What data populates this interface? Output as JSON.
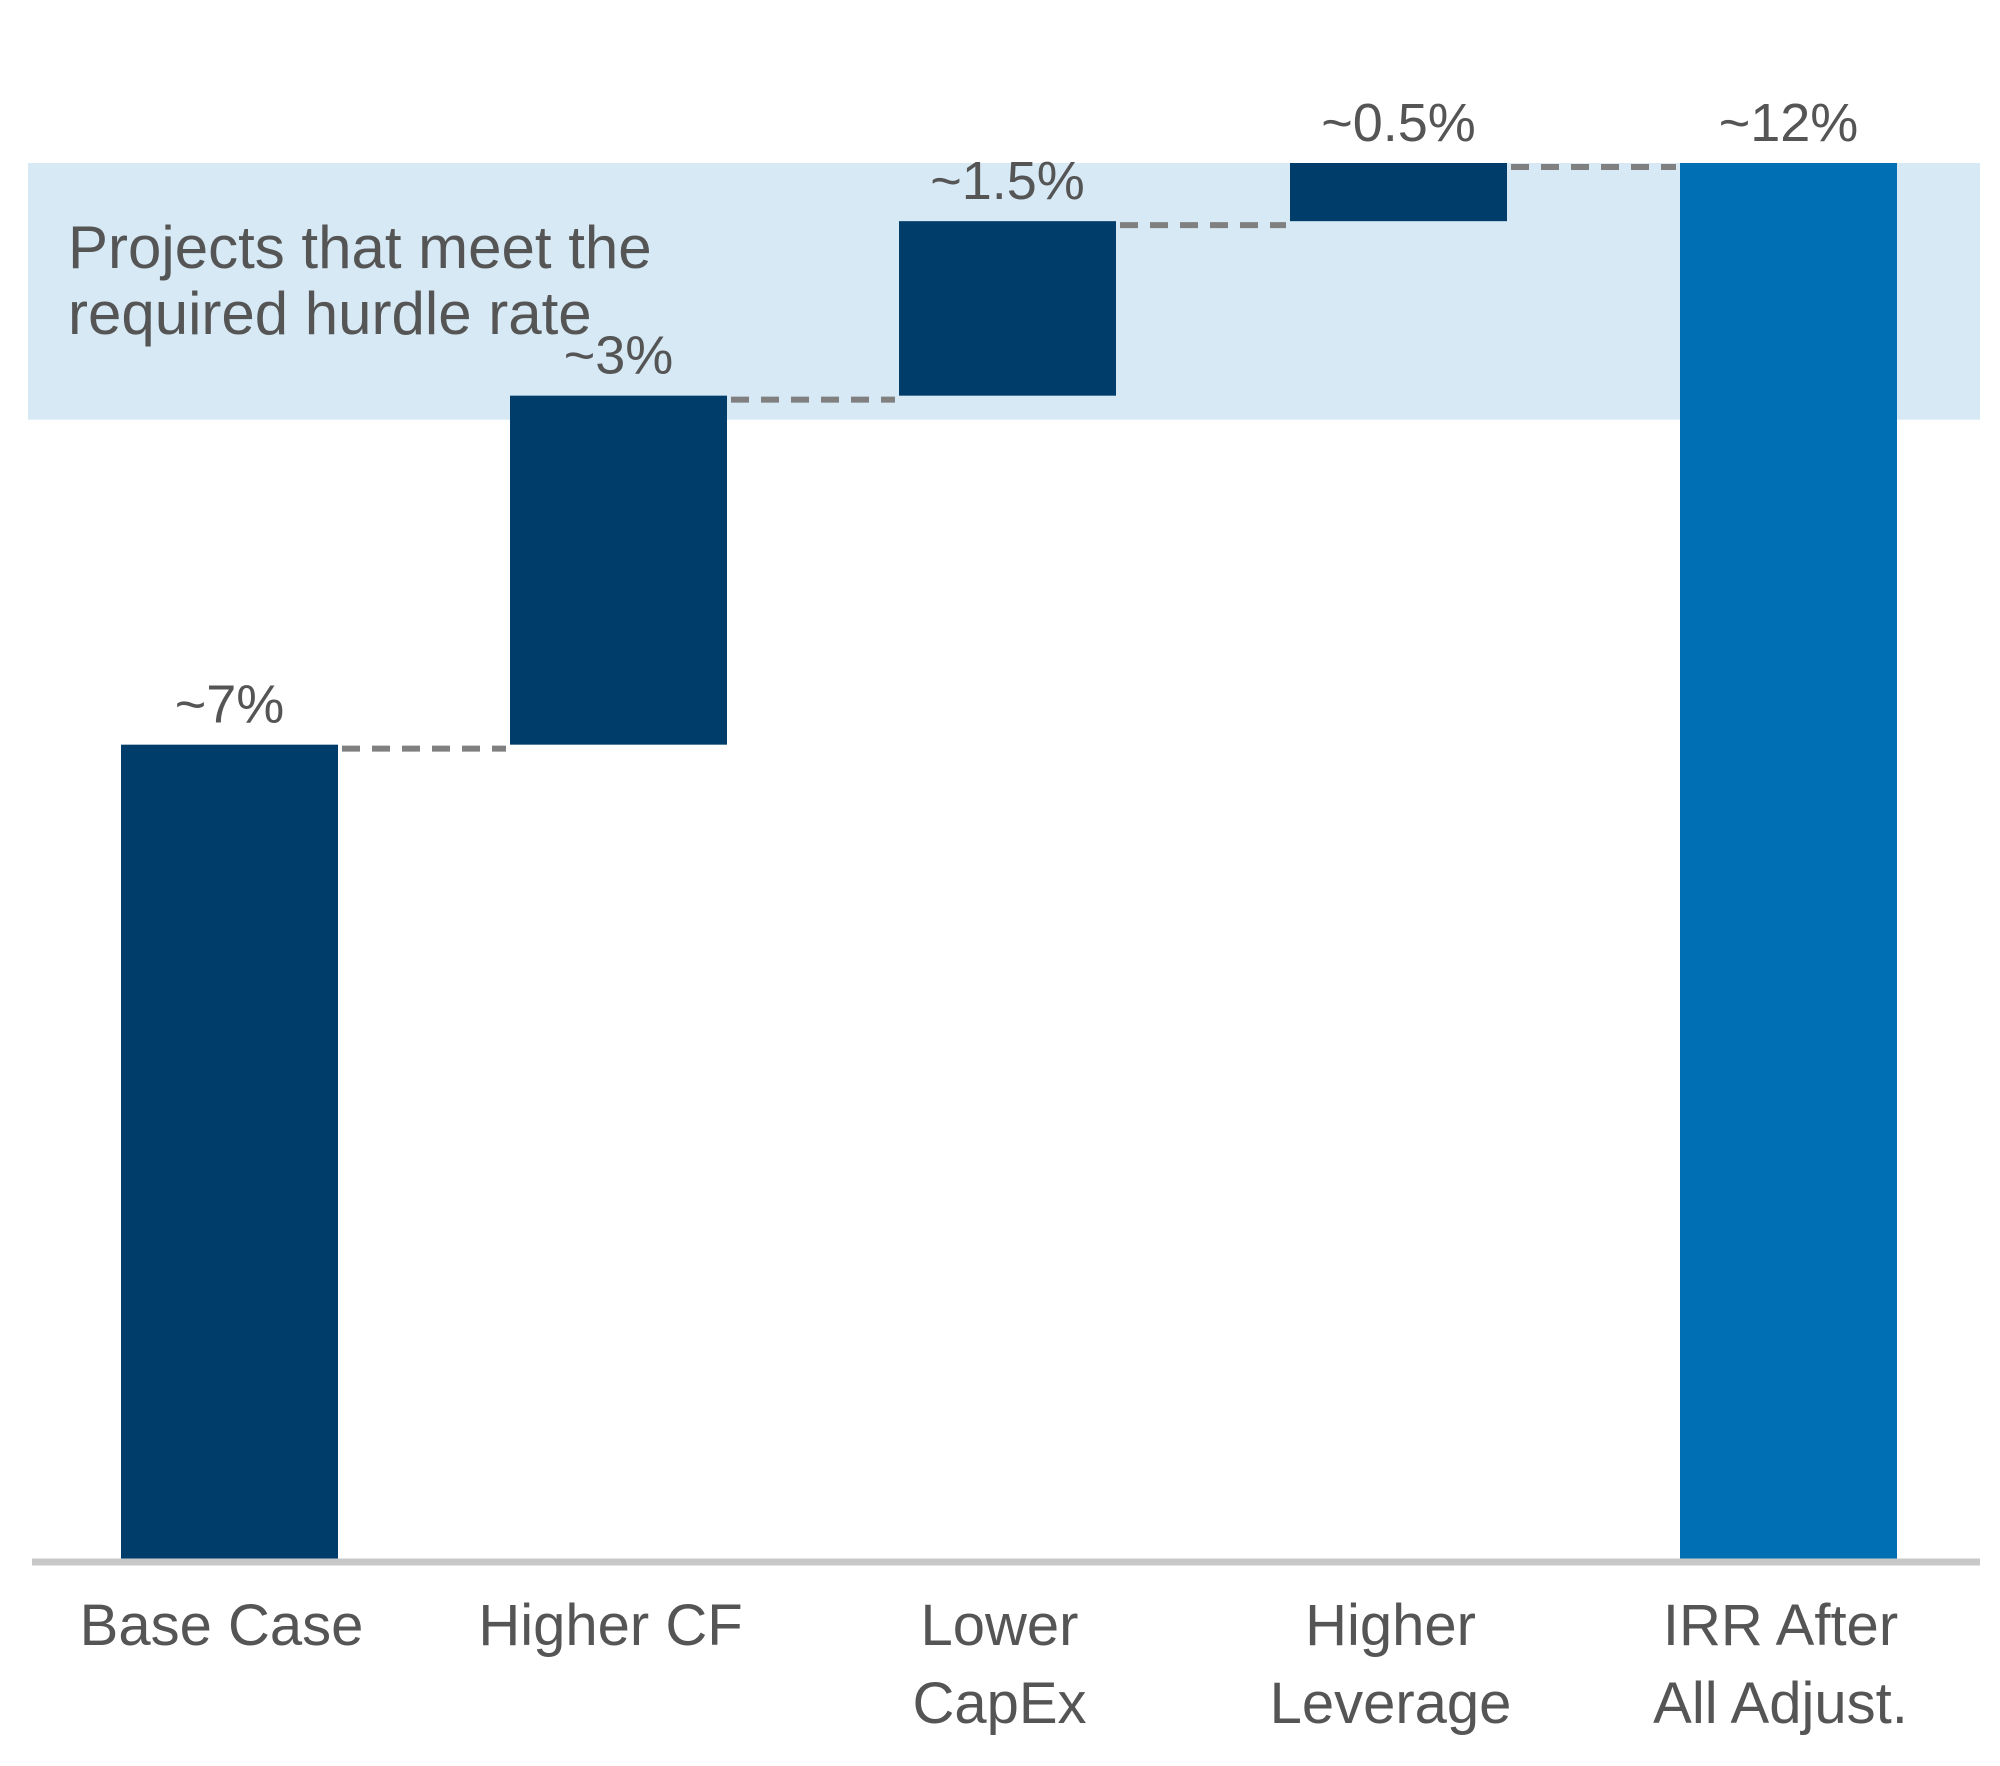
{
  "chart_data": {
    "type": "bar",
    "subtype": "waterfall",
    "title": "",
    "xlabel": "",
    "ylabel": "",
    "ylim": [
      0,
      12
    ],
    "grid": false,
    "categories": [
      [
        "Base Case"
      ],
      [
        "Higher CF"
      ],
      [
        "Lower",
        "CapEx"
      ],
      [
        "Higher",
        "Leverage"
      ],
      [
        "IRR After",
        "All Adjust."
      ]
    ],
    "values": [
      7,
      3,
      1.5,
      0.5,
      12
    ],
    "kinds": [
      "total",
      "increment",
      "increment",
      "increment",
      "total"
    ],
    "data_labels": [
      "~7%",
      "~3%",
      "~1.5%",
      "~0.5%",
      "~12%"
    ],
    "band": {
      "label": [
        "Projects that meet the",
        "required hurdle rate"
      ],
      "range": [
        10,
        12
      ]
    },
    "colors": {
      "bar": "#003d6a",
      "total_bar": "#006fb3",
      "band": "#d6e9f4",
      "connector": "#808080",
      "axis": "#c8c8c8",
      "text": "#555555"
    }
  }
}
